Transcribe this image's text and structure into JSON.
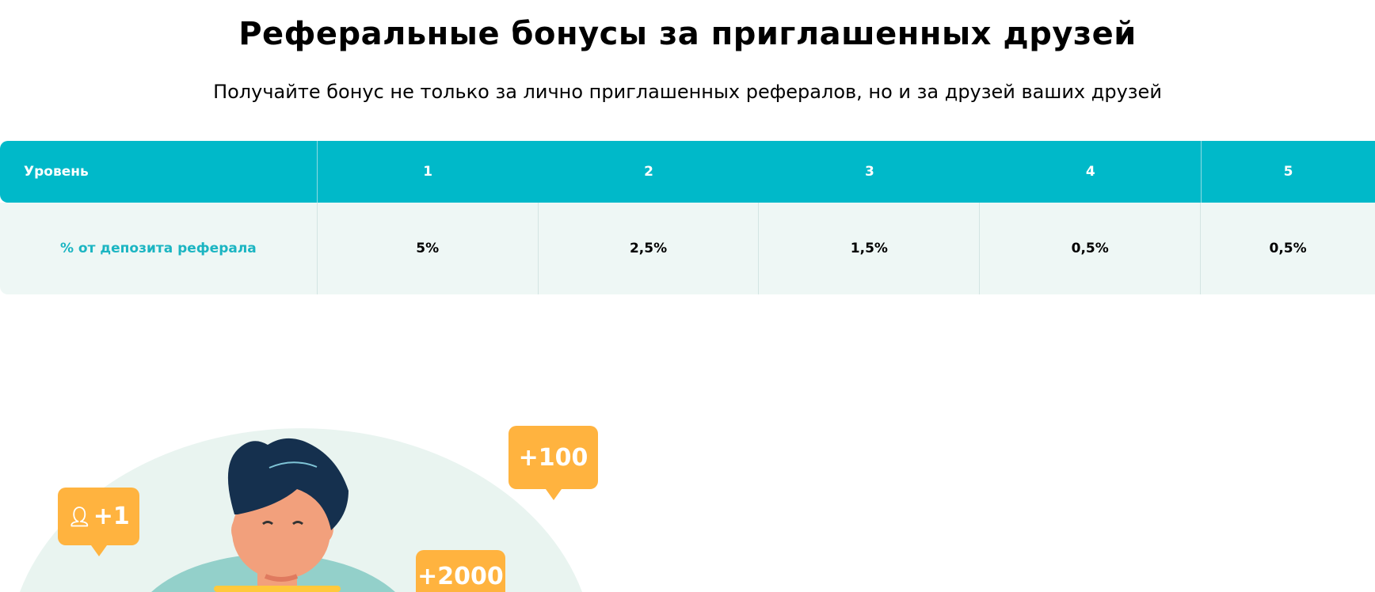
{
  "header": {
    "title": "Реферальные бонусы за приглашенных друзей",
    "subtitle": "Получайте бонус не только за лично приглашенных рефералов, но и за друзей ваших друзей"
  },
  "table": {
    "header": {
      "label": "Уровень",
      "levels": [
        "1",
        "2",
        "3",
        "4",
        "5"
      ]
    },
    "row": {
      "label": "% от депозита реферала",
      "values": [
        "5%",
        "2,5%",
        "1,5%",
        "0,5%",
        "0,5%"
      ]
    }
  },
  "illustration": {
    "bubbles": {
      "friend": "+1",
      "hundred": "+100",
      "two_thousand": "+2000"
    }
  },
  "colors": {
    "accent": "#00b9c9",
    "bubble": "#ffb33f",
    "row_bg": "#eef7f5"
  }
}
